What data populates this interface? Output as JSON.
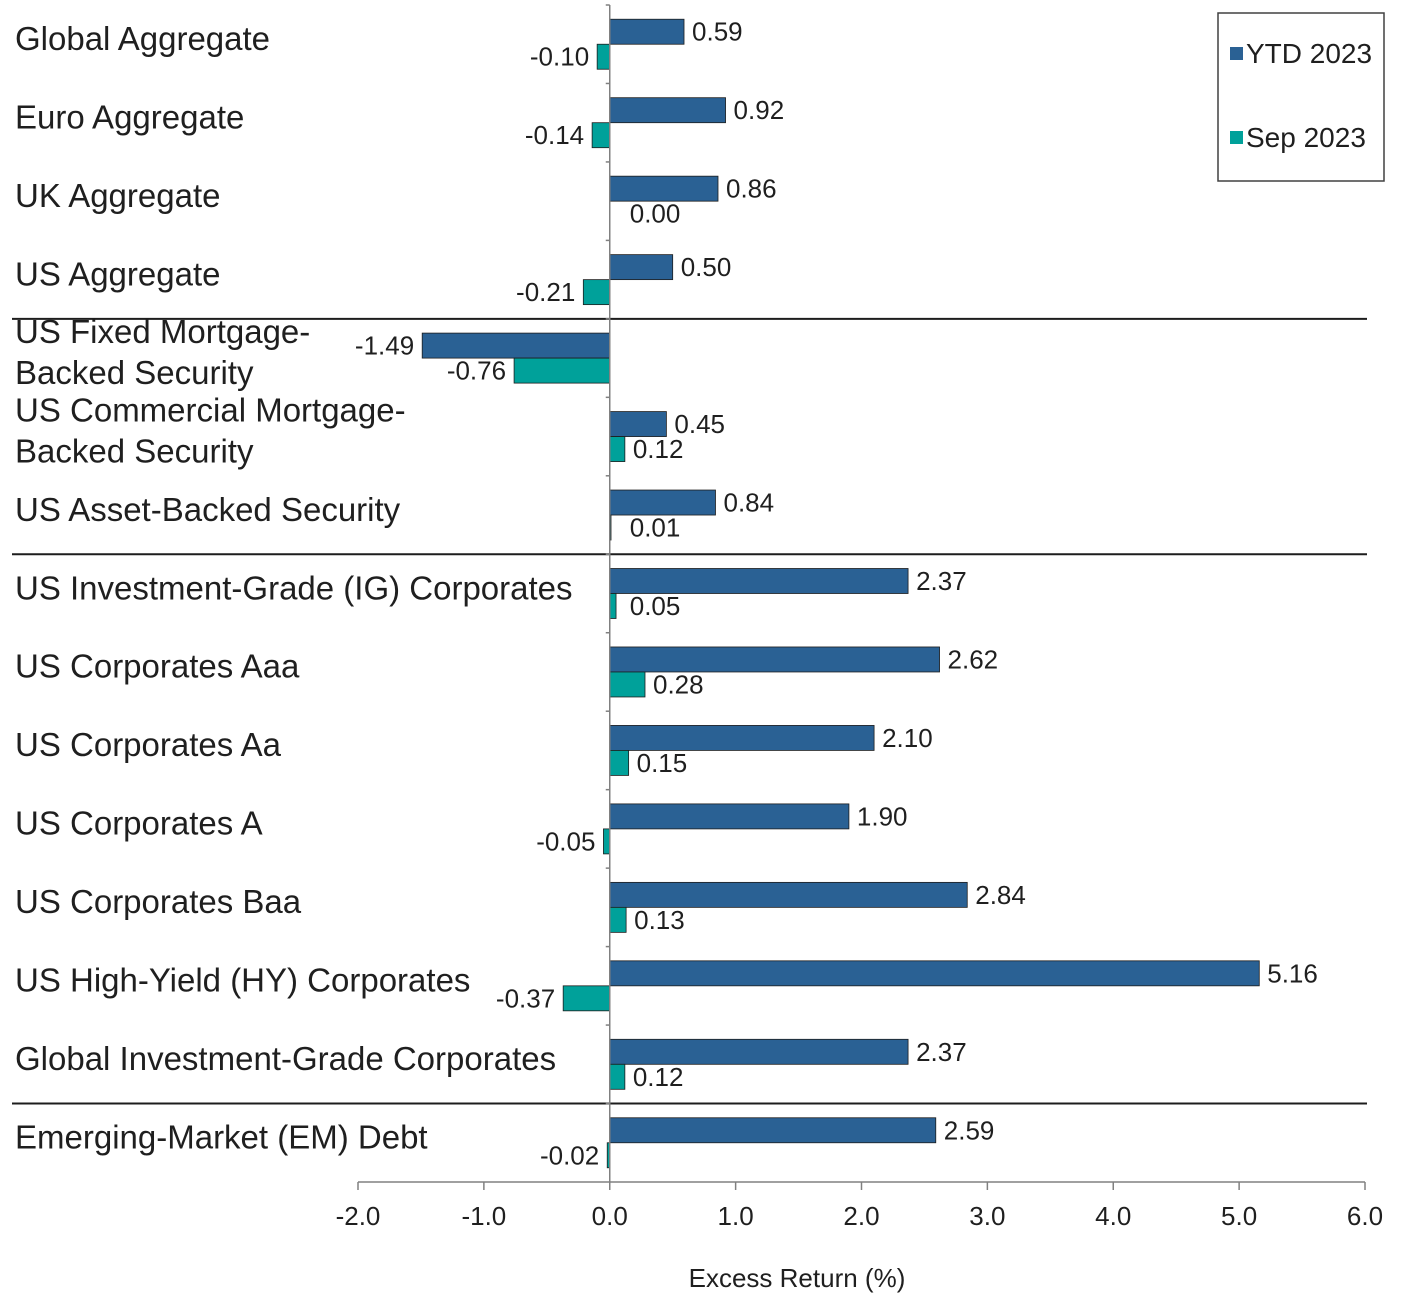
{
  "chart_data": {
    "type": "bar",
    "orientation": "horizontal",
    "xlabel": "Excess Return (%)",
    "xlim": [
      -2.0,
      6.0
    ],
    "xticks": [
      -2.0,
      -1.0,
      0.0,
      1.0,
      2.0,
      3.0,
      4.0,
      5.0,
      6.0
    ],
    "xtick_labels": [
      "-2.0",
      "-1.0",
      "0.0",
      "1.0",
      "2.0",
      "3.0",
      "4.0",
      "5.0",
      "6.0"
    ],
    "categories": [
      [
        "Global Aggregate"
      ],
      [
        "Euro Aggregate"
      ],
      [
        "UK Aggregate"
      ],
      [
        "US Aggregate"
      ],
      [
        "US Fixed Mortgage-",
        "Backed Security"
      ],
      [
        "US Commercial Mortgage-",
        "Backed Security"
      ],
      [
        "US Asset-Backed Security"
      ],
      [
        "US Investment-Grade (IG) Corporates"
      ],
      [
        "US Corporates Aaa"
      ],
      [
        "US Corporates Aa"
      ],
      [
        "US Corporates A"
      ],
      [
        "US Corporates Baa"
      ],
      [
        "US High-Yield (HY) Corporates"
      ],
      [
        "Global Investment-Grade Corporates"
      ],
      [
        "Emerging-Market (EM) Debt"
      ]
    ],
    "series": [
      {
        "name": "YTD 2023",
        "color": "#2a6194",
        "values": [
          0.59,
          0.92,
          0.86,
          0.5,
          -1.49,
          0.45,
          0.84,
          2.37,
          2.62,
          2.1,
          1.9,
          2.84,
          5.16,
          2.37,
          2.59
        ],
        "labels": [
          "0.59",
          "0.92",
          "0.86",
          "0.50",
          "-1.49",
          "0.45",
          "0.84",
          "2.37",
          "2.62",
          "2.10",
          "1.90",
          "2.84",
          "5.16",
          "2.37",
          "2.59"
        ]
      },
      {
        "name": "Sep 2023",
        "color": "#00a19a",
        "values": [
          -0.1,
          -0.14,
          0.0,
          -0.21,
          -0.76,
          0.12,
          0.01,
          0.05,
          0.28,
          0.15,
          -0.05,
          0.13,
          -0.37,
          0.12,
          -0.02
        ],
        "labels": [
          "-0.10",
          "-0.14",
          "0.00",
          "-0.21",
          "-0.76",
          "0.12",
          "0.01",
          "0.05",
          "0.28",
          "0.15",
          "-0.05",
          "0.13",
          "-0.37",
          "0.12",
          "-0.02"
        ]
      }
    ],
    "group_separators_after": [
      3,
      6,
      13
    ],
    "legend": {
      "entries": [
        "YTD 2023",
        "Sep 2023"
      ],
      "position": "top-right"
    }
  }
}
